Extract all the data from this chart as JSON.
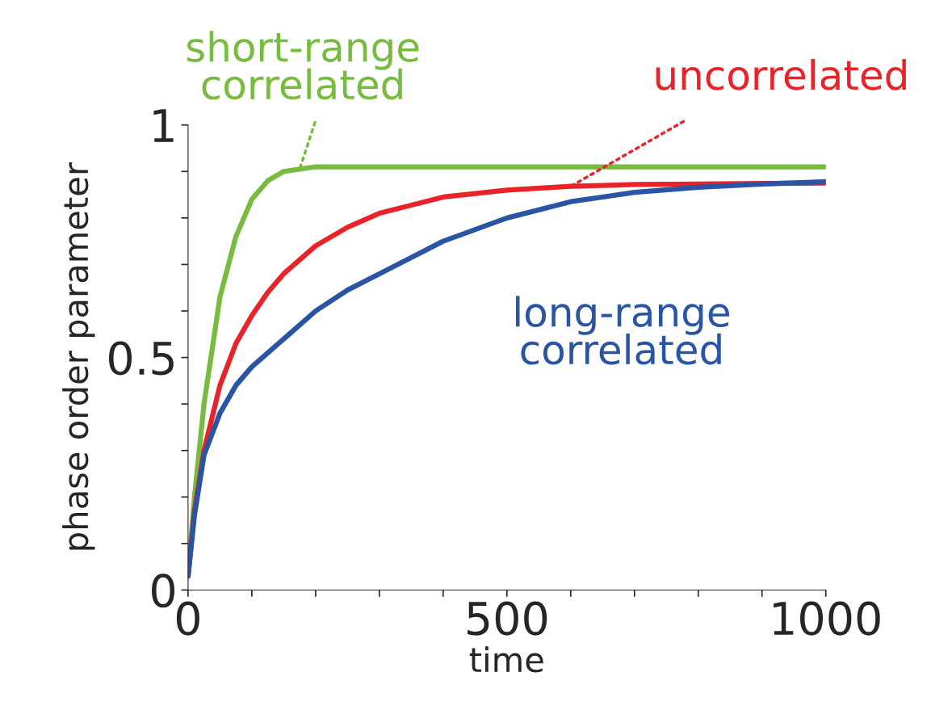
{
  "chart_data": {
    "type": "line",
    "xlabel": "time",
    "ylabel": "phase order parameter",
    "x": [
      0,
      10,
      25,
      50,
      75,
      100,
      125,
      150,
      175,
      200,
      250,
      300,
      400,
      500,
      600,
      700,
      800,
      900,
      1000
    ],
    "series": [
      {
        "name": "short-range correlated",
        "color": "#77bc3f",
        "values": [
          0.03,
          0.2,
          0.4,
          0.63,
          0.76,
          0.84,
          0.88,
          0.9,
          0.905,
          0.91,
          0.91,
          0.91,
          0.91,
          0.91,
          0.91,
          0.91,
          0.91,
          0.91,
          0.91
        ]
      },
      {
        "name": "uncorrelated",
        "color": "#e8232a",
        "values": [
          0.03,
          0.17,
          0.3,
          0.44,
          0.53,
          0.59,
          0.64,
          0.68,
          0.71,
          0.74,
          0.78,
          0.81,
          0.845,
          0.86,
          0.868,
          0.872,
          0.873,
          0.874,
          0.875
        ]
      },
      {
        "name": "long-range correlated",
        "color": "#2a55a5",
        "values": [
          0.03,
          0.16,
          0.29,
          0.38,
          0.44,
          0.48,
          0.51,
          0.54,
          0.57,
          0.6,
          0.645,
          0.68,
          0.75,
          0.8,
          0.835,
          0.855,
          0.866,
          0.873,
          0.878
        ]
      }
    ],
    "xlim": [
      0,
      1000
    ],
    "ylim": [
      0,
      1
    ],
    "xticks": [
      0,
      {
        "value": 100,
        "label": null
      },
      {
        "value": 200,
        "label": null
      },
      {
        "value": 300,
        "label": null
      },
      {
        "value": 400,
        "label": null
      },
      500,
      {
        "value": 600,
        "label": null
      },
      {
        "value": 700,
        "label": null
      },
      {
        "value": 800,
        "label": null
      },
      {
        "value": 900,
        "label": null
      },
      1000
    ],
    "yticks": [
      0,
      {
        "value": 0.1,
        "label": null
      },
      {
        "value": 0.2,
        "label": null
      },
      {
        "value": 0.3,
        "label": null
      },
      {
        "value": 0.4,
        "label": null
      },
      0.5,
      {
        "value": 0.6,
        "label": null
      },
      {
        "value": 0.7,
        "label": null
      },
      {
        "value": 0.8,
        "label": null
      },
      {
        "value": 0.9,
        "label": null
      },
      1
    ],
    "grid": false,
    "legend": false
  }
}
